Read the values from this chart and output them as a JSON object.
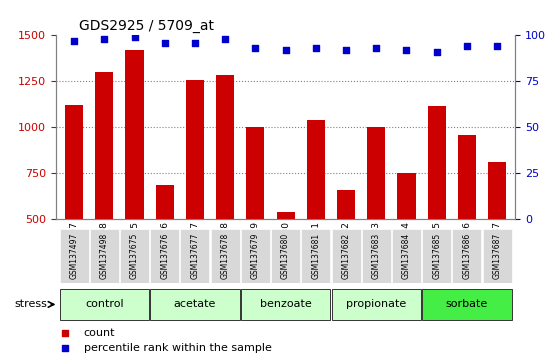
{
  "title": "GDS2925 / 5709_at",
  "samples": [
    "GSM137497",
    "GSM137498",
    "GSM137675",
    "GSM137676",
    "GSM137677",
    "GSM137678",
    "GSM137679",
    "GSM137680",
    "GSM137681",
    "GSM137682",
    "GSM137683",
    "GSM137684",
    "GSM137685",
    "GSM137686",
    "GSM137687"
  ],
  "counts": [
    1120,
    1300,
    1420,
    690,
    1255,
    1285,
    1005,
    540,
    1040,
    660,
    1005,
    750,
    1115,
    960,
    810
  ],
  "percentile": [
    97,
    98,
    99,
    96,
    96,
    98,
    93,
    92,
    93,
    92,
    93,
    92,
    91,
    94,
    94
  ],
  "bar_color": "#cc0000",
  "dot_color": "#0000cc",
  "ylim_left": [
    500,
    1500
  ],
  "ylim_right": [
    0,
    100
  ],
  "yticks_left": [
    500,
    750,
    1000,
    1250,
    1500
  ],
  "yticks_right": [
    0,
    25,
    50,
    75,
    100
  ],
  "groups": [
    {
      "label": "control",
      "start": 0,
      "end": 3,
      "color": "#ccffcc"
    },
    {
      "label": "acetate",
      "start": 3,
      "end": 6,
      "color": "#ccffcc"
    },
    {
      "label": "benzoate",
      "start": 6,
      "end": 9,
      "color": "#ccffcc"
    },
    {
      "label": "propionate",
      "start": 9,
      "end": 12,
      "color": "#ccffcc"
    },
    {
      "label": "sorbate",
      "start": 12,
      "end": 15,
      "color": "#44ee44"
    }
  ],
  "stress_label": "stress",
  "legend_count": "count",
  "legend_percentile": "percentile rank within the sample",
  "grid_yticks": [
    750,
    1000,
    1250
  ],
  "background_color": "#ffffff",
  "xlabel_color": "#cc0000",
  "ylabel_right_color": "#0000cc"
}
